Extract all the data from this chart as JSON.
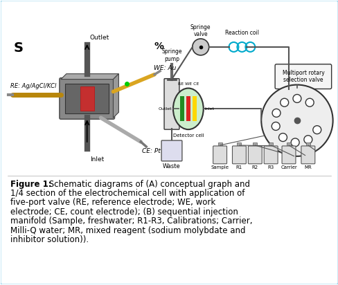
{
  "border_color": "#87ceeb",
  "label_A": "S",
  "label_B": "%",
  "caption_bold": "Figure 1:",
  "caption_lines": [
    " Schematic diagrams of (A) conceptual graph and",
    "1/4 section of the electrochemical cell with application of",
    "five-port valve (RE, reference electrode; WE, work",
    "electrode; CE, count electrode); (B) sequential injection",
    "manifold (Sample, freshwater; R1-R3, Calibrations; Carrier,",
    "Milli-Q water; MR, mixed reagent (sodium molybdate and",
    "inhibitor solution))."
  ],
  "bottle_labels": [
    "Sample",
    "R1",
    "R2",
    "R3",
    "Carrier",
    "MR"
  ],
  "coil_color": "#00aacc",
  "cell_body_color": "#888888",
  "cell_dark_color": "#666666",
  "re_rod_color": "#b8860b",
  "we_rod_color": "#daa520",
  "ce_rod_color": "#aaaaaa",
  "det_fill_color": "#cceecc",
  "bar_colors": [
    "#228B22",
    "#dd2222",
    "#ffd700"
  ]
}
